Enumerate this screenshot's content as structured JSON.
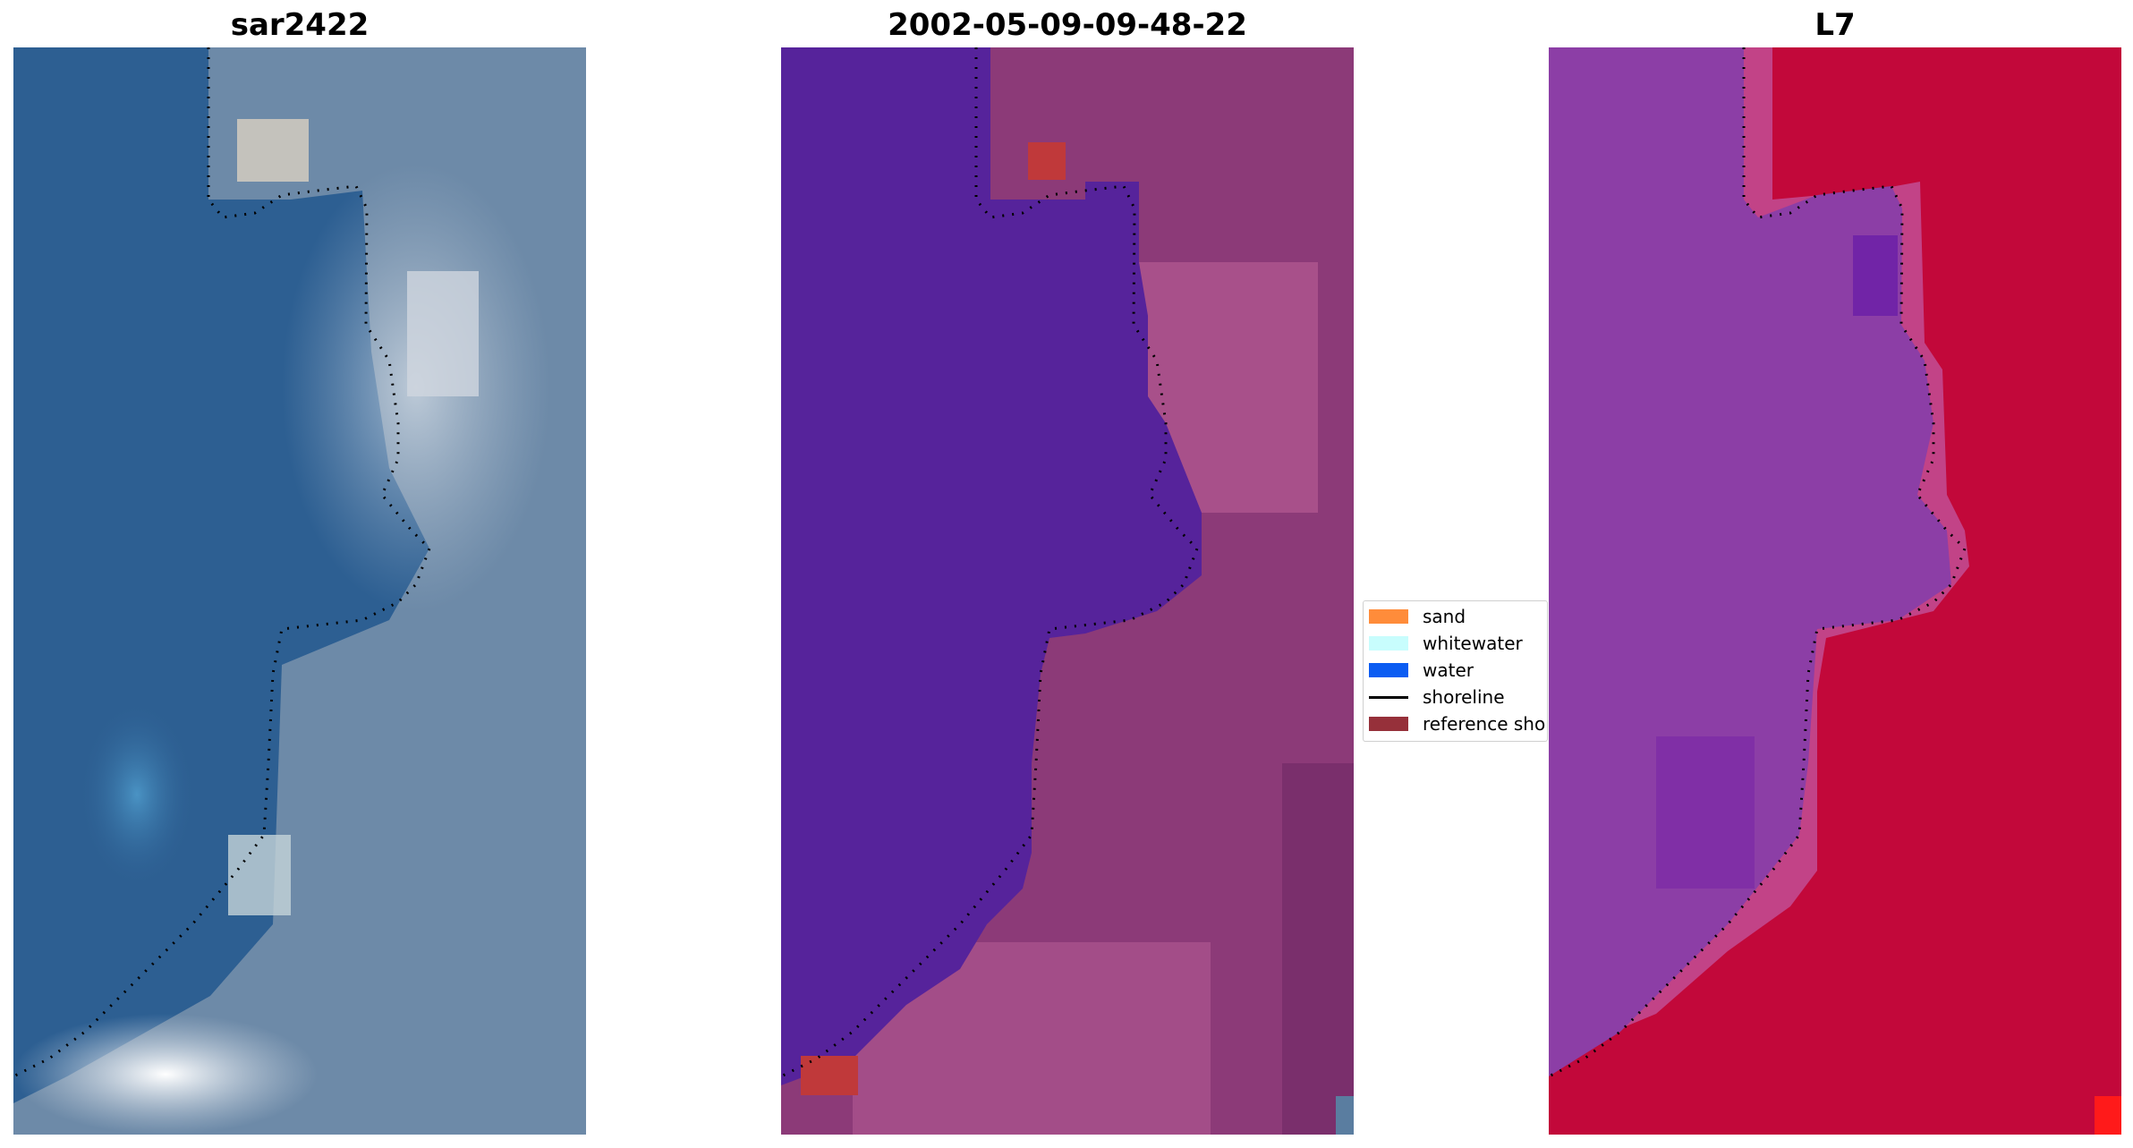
{
  "panels": [
    {
      "title": "sar2422"
    },
    {
      "title": "2002-05-09-09-48-22"
    },
    {
      "title": "L7"
    }
  ],
  "legend": {
    "items": [
      {
        "label": "sand",
        "color": "#ff8c3a"
      },
      {
        "label": "whitewater",
        "color": "#c8fdfd"
      },
      {
        "label": "water",
        "color": "#0b5cf2"
      },
      {
        "label": "shoreline",
        "color": "#000000"
      },
      {
        "label": "reference shoreline",
        "color": "#96303a"
      }
    ]
  },
  "colors": {
    "sar_sea": "#2d5f92",
    "sar_land": "#6d8aa8",
    "class_water": "#56239b",
    "class_land": "#8c3a78",
    "ndwi_water": "#8c3ea6",
    "ndwi_land": "#c2083a"
  }
}
